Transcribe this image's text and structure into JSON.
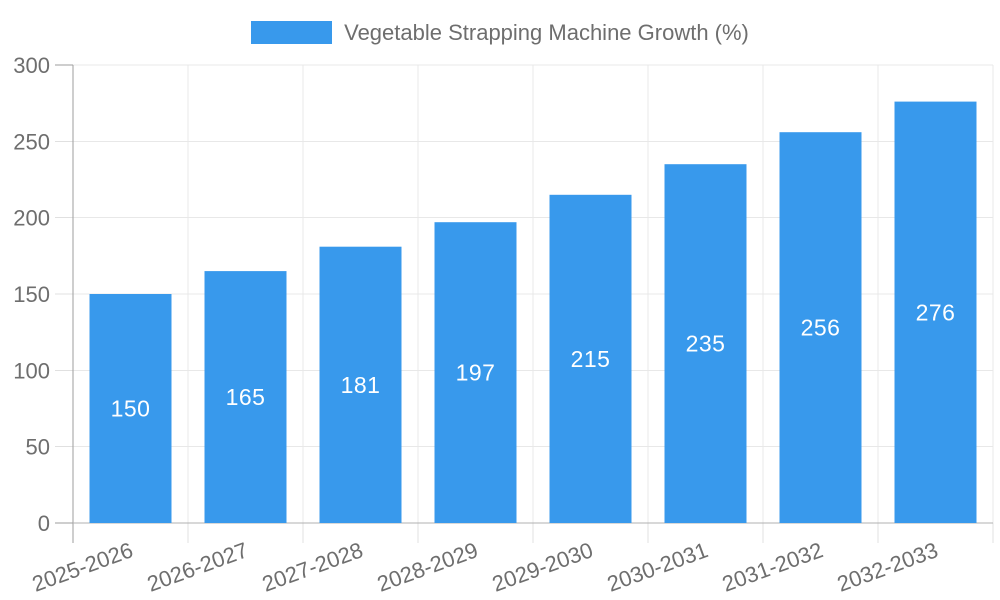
{
  "chart_data": {
    "type": "bar",
    "title": "Vegetable Strapping Machine Growth (%)",
    "categories": [
      "2025-2026",
      "2026-2027",
      "2027-2028",
      "2028-2029",
      "2029-2030",
      "2030-2031",
      "2031-2032",
      "2032-2033"
    ],
    "values": [
      150,
      165,
      181,
      197,
      215,
      235,
      256,
      276
    ],
    "value_labels": [
      "150",
      "165",
      "181",
      "197",
      "215",
      "235",
      "256",
      "276"
    ],
    "xlabel": "",
    "ylabel": "",
    "ylim": [
      0,
      300
    ],
    "yticks": [
      0,
      50,
      100,
      150,
      200,
      250,
      300
    ],
    "ytick_labels": [
      "0",
      "50",
      "100",
      "150",
      "200",
      "250",
      "300"
    ],
    "grid": true,
    "legend_position": "top",
    "x_label_rotation_deg": -20,
    "colors": {
      "bar": "#3899ec",
      "value_label": "#ffffff",
      "axis_text": "#6e6e6e",
      "gridline": "#e8e8e8",
      "tick": "#e0e0e0",
      "y_axis_line": "#9e9e9e",
      "x_axis_line": "#b0b0b0",
      "background": "#ffffff"
    }
  }
}
